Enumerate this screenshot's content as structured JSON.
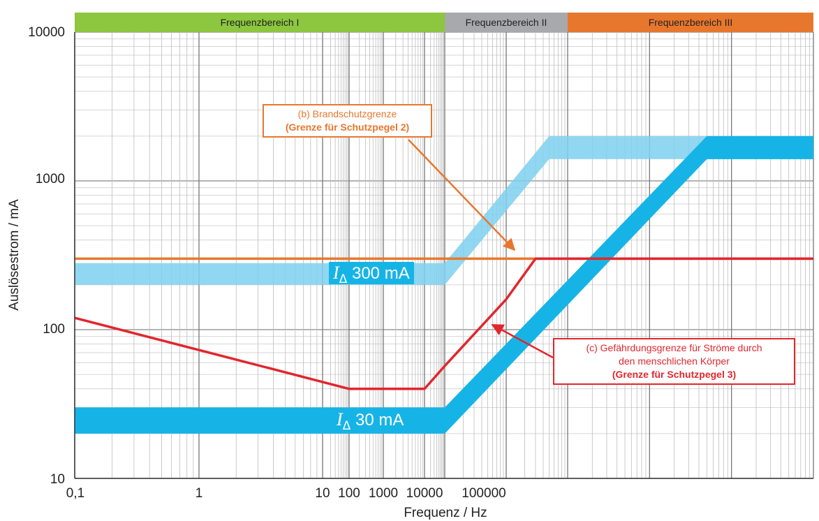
{
  "chart_data": {
    "type": "line",
    "xlabel": "Frequenz / Hz",
    "ylabel": "Auslösestrom / mA",
    "x_scale": "log",
    "y_scale": "log",
    "xlim": [
      0.1,
      10000000000
    ],
    "ylim": [
      10,
      10000
    ],
    "y_ticks": [
      "10",
      "100",
      "1000",
      "10000"
    ],
    "x_ticks": [
      "0,1",
      "1",
      "10",
      "100",
      "1000",
      "10000",
      "100000"
    ],
    "grid": true,
    "frequency_ranges": [
      {
        "label": "Frequenzbereich I",
        "color": "#8dc63f",
        "from": 0.1,
        "to": 100000
      },
      {
        "label": "Frequenzbereich II",
        "color": "#a7a9ac",
        "from": 100000,
        "to": 10000000
      },
      {
        "label": "Frequenzbereich III",
        "color": "#e8772e",
        "from": 10000000,
        "to": 10000000000
      }
    ],
    "series": [
      {
        "color": "#e8772e",
        "x": [
          0.1,
          10000000000
        ],
        "y": [
          300,
          300
        ]
      },
      {
        "color": "#e2262d",
        "x": [
          0.1,
          100,
          10000,
          100000,
          1000000,
          3000000,
          10000000000
        ],
        "y": [
          120,
          40,
          40,
          57,
          160,
          300,
          300
        ]
      }
    ],
    "bands": [
      {
        "label_symbol": "I",
        "label_sub": "Δ",
        "label_value": "300 mA",
        "color": "#7fd0f0",
        "x": [
          0.1,
          100000,
          5000000,
          10000000000
        ],
        "y_low": [
          200,
          200,
          1400,
          1400
        ],
        "y_high": [
          280,
          280,
          2000,
          2000
        ]
      },
      {
        "label_symbol": "I",
        "label_sub": "Δ",
        "label_value": "30 mA",
        "color": "#16b4e6",
        "x": [
          0.1,
          100000,
          500000000,
          10000000000
        ],
        "y_low": [
          20,
          20,
          1400,
          1400
        ],
        "y_high": [
          30,
          30,
          2000,
          2000
        ]
      }
    ],
    "annotations": [
      {
        "line1": "(b) Brandschutzgrenze",
        "line2": "(Grenze für Schutzpegel 2)",
        "color": "#e8772e",
        "points_to": [
          2000000,
          300
        ]
      },
      {
        "line1": "(c) Gefährdungsgrenze für Ströme durch",
        "line2": "den menschlichen Körper",
        "line3": "(Grenze für Schutzpegel 3)",
        "color": "#e2262d",
        "points_to": [
          1000000,
          105
        ]
      }
    ]
  }
}
